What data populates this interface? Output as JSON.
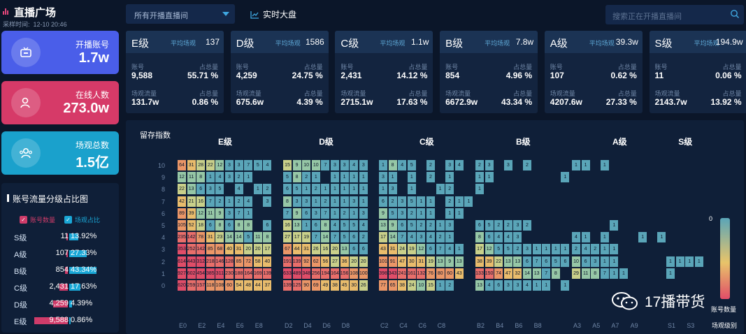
{
  "app": {
    "title": "直播广场",
    "sample_label": "采样时间:",
    "sample_time": "12-10 20:46"
  },
  "kpis": [
    {
      "label": "开播账号",
      "value": "1.7w",
      "color": "#4a5ee9",
      "icon": "live-tv-icon"
    },
    {
      "label": "在线人数",
      "value": "273.0w",
      "color": "#d63a68",
      "icon": "user-icon"
    },
    {
      "label": "场观总数",
      "value": "1.5亿",
      "color": "#1aa1cc",
      "icon": "users-icon"
    }
  ],
  "topbar": {
    "dropdown_value": "所有开播直播间",
    "realtime_label": "实时大盘",
    "search_placeholder": "搜索正在开播直播间"
  },
  "grade_labels": {
    "avg": "平均场观",
    "accounts": "账号",
    "share": "占总量",
    "traffic": "场观流量"
  },
  "grades": [
    {
      "name": "E级",
      "avg": "137",
      "accounts": "9,588",
      "acc_share": "55.71 %",
      "traffic": "131.7w",
      "traffic_share": "0.86 %"
    },
    {
      "name": "D级",
      "avg": "1586",
      "accounts": "4,259",
      "acc_share": "24.75 %",
      "traffic": "675.6w",
      "traffic_share": "4.39 %"
    },
    {
      "name": "C级",
      "avg": "1.1w",
      "accounts": "2,431",
      "acc_share": "14.12 %",
      "traffic": "2715.1w",
      "traffic_share": "17.63 %"
    },
    {
      "name": "B级",
      "avg": "7.8w",
      "accounts": "854",
      "acc_share": "4.96 %",
      "traffic": "6672.9w",
      "traffic_share": "43.34 %"
    },
    {
      "name": "A级",
      "avg": "39.3w",
      "accounts": "107",
      "acc_share": "0.62 %",
      "traffic": "4207.6w",
      "traffic_share": "27.33 %"
    },
    {
      "name": "S级",
      "avg": "194.9w",
      "accounts": "11",
      "acc_share": "0.06 %",
      "traffic": "2143.7w",
      "traffic_share": "13.92 %"
    }
  ],
  "ratio_panel": {
    "title": "账号流量分级占比图",
    "legend_accounts": "账号数量",
    "legend_share": "场观占比",
    "accent_accounts": "#cf3c6a",
    "accent_share": "#1aa7d6",
    "rows": [
      {
        "grade": "S级",
        "count": "11",
        "count_frac": 0.001,
        "share": "13.92%",
        "share_frac": 0.139
      },
      {
        "grade": "A级",
        "count": "107",
        "count_frac": 0.011,
        "share": "27.33%",
        "share_frac": 0.273
      },
      {
        "grade": "B级",
        "count": "854",
        "count_frac": 0.089,
        "share": "43.34%",
        "share_frac": 0.433
      },
      {
        "grade": "C级",
        "count": "2,431",
        "count_frac": 0.254,
        "share": "17.63%",
        "share_frac": 0.176
      },
      {
        "grade": "D级",
        "count": "4,259",
        "count_frac": 0.444,
        "share": "4.39%",
        "share_frac": 0.044
      },
      {
        "grade": "E级",
        "count": "9,588",
        "count_frac": 1.0,
        "share": "0.86%",
        "share_frac": 0.009
      }
    ]
  },
  "heatmap": {
    "title": "留存指数",
    "scale_min": "0",
    "legend_label": "账号数量",
    "x_axis_label": "场观级别",
    "y_levels": [
      "10",
      "9",
      "8",
      "7",
      "6",
      "5",
      "4",
      "3",
      "2",
      "1",
      "0"
    ],
    "groups": [
      {
        "name": "E级",
        "ticks": [
          "E0",
          "E2",
          "E4",
          "E6",
          "E8"
        ],
        "cols": 10
      },
      {
        "name": "D级",
        "ticks": [
          "D2",
          "D4",
          "D6",
          "D8"
        ],
        "cols": 9
      },
      {
        "name": "C级",
        "ticks": [
          "C2",
          "C4",
          "C6",
          "C8"
        ],
        "cols": 10
      },
      {
        "name": "B级",
        "ticks": [
          "B2",
          "B4",
          "B6",
          "B8"
        ],
        "cols": 10
      },
      {
        "name": "A级",
        "ticks": [
          "A3",
          "A5",
          "A7",
          "A9"
        ],
        "cols": 10
      },
      {
        "name": "S级",
        "ticks": [
          "S1",
          "S3"
        ],
        "cols": 4
      }
    ],
    "rows": {
      "E": [
        [
          "64",
          "31",
          "28",
          "22",
          "12",
          "3",
          "3",
          "7",
          "5",
          "4"
        ],
        [
          "12",
          "11",
          "8",
          "1",
          "4",
          "3",
          "2",
          "1",
          "",
          ""
        ],
        [
          "22",
          "13",
          "6",
          "3",
          "5",
          "",
          "4",
          "",
          "1",
          "2"
        ],
        [
          "42",
          "21",
          "16",
          "7",
          "2",
          "1",
          "2",
          "4",
          "",
          "3"
        ],
        [
          "89",
          "39",
          "12",
          "11",
          "9",
          "3",
          "7",
          "1",
          "",
          ""
        ],
        [
          "105",
          "52",
          "18",
          "6",
          "8",
          "6",
          "8",
          "8",
          "",
          "6"
        ],
        [
          "235",
          "142",
          "78",
          "31",
          "23",
          "14",
          "14",
          "5",
          "11",
          "8"
        ],
        [
          "353",
          "252",
          "142",
          "85",
          "68",
          "40",
          "31",
          "20",
          "20",
          "17"
        ],
        [
          "614",
          "443",
          "312",
          "218",
          "146",
          "128",
          "85",
          "72",
          "58",
          "40"
        ],
        [
          "927",
          "602",
          "454",
          "385",
          "311",
          "230",
          "188",
          "164",
          "169",
          "139"
        ],
        [
          "620",
          "259",
          "157",
          "118",
          "108",
          "60",
          "54",
          "48",
          "44",
          "37"
        ]
      ],
      "D": [
        [
          "15",
          "9",
          "10",
          "10",
          "7",
          "3",
          "3",
          "4",
          "3"
        ],
        [
          "5",
          "8",
          "2",
          "1",
          "",
          "1",
          "1",
          "1",
          "1"
        ],
        [
          "6",
          "5",
          "1",
          "2",
          "1",
          "1",
          "1",
          "1",
          "1"
        ],
        [
          "8",
          "3",
          "3",
          "1",
          "2",
          "1",
          "1",
          "3",
          "1"
        ],
        [
          "7",
          "9",
          "6",
          "3",
          "7",
          "1",
          "2",
          "1",
          "3"
        ],
        [
          "16",
          "13",
          "1",
          "6",
          "8",
          "4",
          "5",
          "5",
          "4"
        ],
        [
          "27",
          "17",
          "19",
          "7",
          "14",
          "7",
          "5",
          "6",
          "2"
        ],
        [
          "67",
          "44",
          "31",
          "26",
          "16",
          "20",
          "13",
          "6",
          "6"
        ],
        [
          "191",
          "139",
          "92",
          "62",
          "56",
          "27",
          "36",
          "20",
          "20"
        ],
        [
          "633",
          "489",
          "348",
          "256",
          "194",
          "164",
          "156",
          "108",
          "100"
        ],
        [
          "139",
          "125",
          "90",
          "69",
          "49",
          "38",
          "45",
          "30",
          "26"
        ]
      ],
      "C": [
        [
          "1",
          "8",
          "4",
          "5",
          "",
          "2",
          "",
          "3",
          "4",
          ""
        ],
        [
          "3",
          "1",
          "",
          "1",
          "",
          "2",
          "",
          "1",
          "",
          ""
        ],
        [
          "1",
          "3",
          "",
          "1",
          "",
          "",
          "1",
          "2",
          "",
          ""
        ],
        [
          "6",
          "2",
          "3",
          "5",
          "1",
          "1",
          "",
          "2",
          "1",
          "1"
        ],
        [
          "9",
          "5",
          "3",
          "2",
          "1",
          "1",
          "",
          "1",
          "1",
          ""
        ],
        [
          "13",
          "9",
          "6",
          "5",
          "2",
          "2",
          "1",
          "3",
          "",
          ""
        ],
        [
          "17",
          "14",
          "7",
          "4",
          "3",
          "4",
          "2",
          "1",
          "",
          ""
        ],
        [
          "43",
          "31",
          "24",
          "19",
          "12",
          "6",
          "7",
          "4",
          "1",
          ""
        ],
        [
          "101",
          "91",
          "47",
          "30",
          "31",
          "19",
          "13",
          "9",
          "13",
          ""
        ],
        [
          "398",
          "343",
          "241",
          "161",
          "132",
          "76",
          "80",
          "60",
          "43",
          ""
        ],
        [
          "77",
          "65",
          "38",
          "24",
          "10",
          "15",
          "1",
          "2",
          "",
          ""
        ]
      ],
      "B": [
        [
          "2",
          "3",
          "",
          "3",
          "",
          "2",
          "",
          "",
          "",
          ""
        ],
        [
          "1",
          "1",
          "",
          "",
          "",
          "",
          "",
          "",
          "",
          "1"
        ],
        [
          "1",
          "",
          "",
          "",
          "",
          "",
          "",
          "",
          "",
          ""
        ],
        [
          "",
          "",
          "",
          "",
          "",
          "",
          "",
          "",
          "",
          ""
        ],
        [
          "",
          "",
          "",
          "",
          "",
          "",
          "",
          "",
          "",
          ""
        ],
        [
          "6",
          "5",
          "2",
          "2",
          "3",
          "2",
          "",
          "",
          "",
          ""
        ],
        [
          "8",
          "6",
          "4",
          "4",
          "3",
          "",
          "",
          "",
          "",
          ""
        ],
        [
          "17",
          "12",
          "5",
          "5",
          "2",
          "3",
          "1",
          "1",
          "1",
          "1"
        ],
        [
          "38",
          "39",
          "22",
          "13",
          "13",
          "6",
          "7",
          "6",
          "5",
          "6"
        ],
        [
          "133",
          "150",
          "74",
          "47",
          "32",
          "14",
          "13",
          "7",
          "8",
          ""
        ],
        [
          "13",
          "4",
          "6",
          "3",
          "3",
          "4",
          "1",
          "1",
          "",
          "1"
        ]
      ],
      "A": [
        [
          "1",
          "1",
          "",
          "1",
          "",
          "",
          "",
          "",
          "",
          ""
        ],
        [
          "",
          "",
          "",
          "",
          "",
          "",
          "",
          "",
          "",
          ""
        ],
        [
          "",
          "",
          "",
          "",
          "",
          "",
          "",
          "",
          "",
          ""
        ],
        [
          "",
          "",
          "",
          "",
          "",
          "",
          "",
          "",
          "",
          ""
        ],
        [
          "",
          "",
          "",
          "",
          "",
          "",
          "",
          "",
          "",
          ""
        ],
        [
          "",
          "",
          "",
          "",
          "1",
          "",
          "",
          "",
          "",
          ""
        ],
        [
          "4",
          "1",
          "",
          "1",
          "",
          "",
          "",
          "1",
          "",
          "1"
        ],
        [
          "2",
          "4",
          "2",
          "1",
          "1",
          "",
          "",
          "",
          "",
          ""
        ],
        [
          "10",
          "6",
          "3",
          "1",
          "1",
          "",
          "",
          "",
          "",
          ""
        ],
        [
          "29",
          "11",
          "8",
          "7",
          "1",
          "1",
          "",
          "",
          "",
          ""
        ],
        [
          "",
          "",
          "",
          "",
          "",
          "",
          "",
          "",
          "",
          ""
        ]
      ],
      "S": [
        [
          "",
          "",
          "",
          ""
        ],
        [
          "",
          "",
          "",
          ""
        ],
        [
          "",
          "",
          "",
          ""
        ],
        [
          "",
          "",
          "",
          ""
        ],
        [
          "",
          "",
          "",
          ""
        ],
        [
          "",
          "",
          "",
          ""
        ],
        [
          "",
          "",
          "",
          ""
        ],
        [
          "",
          "",
          "",
          ""
        ],
        [
          "1",
          "1",
          "1",
          "1"
        ],
        [
          "1",
          "",
          "",
          ""
        ],
        [
          "",
          "",
          "",
          ""
        ]
      ]
    }
  },
  "watermark": "17播带货"
}
